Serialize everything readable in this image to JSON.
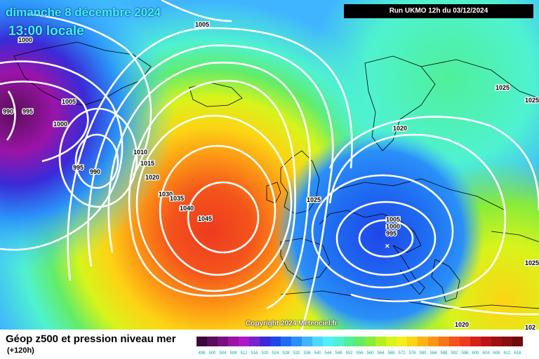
{
  "header": {
    "date": "dimanche 8 décembre 2024",
    "time": "13:00 locale",
    "run": "Run UKMO 12h du 03/12/2024"
  },
  "copyright": "Copyright 2024 Meteociel.fr",
  "legend": {
    "title": "Géop z500 et pression niveau mer",
    "subtitle": "(+120h)",
    "scale": [
      "496",
      "500",
      "504",
      "508",
      "512",
      "516",
      "520",
      "524",
      "528",
      "532",
      "536",
      "540",
      "544",
      "548",
      "552",
      "556",
      "560",
      "564",
      "568",
      "572",
      "576",
      "580",
      "584",
      "588",
      "592",
      "596",
      "600",
      "604",
      "608",
      "612",
      "616"
    ],
    "colors": [
      "#3a0a3a",
      "#5a0f5a",
      "#7a1080",
      "#9a14a8",
      "#b018c8",
      "#7a22cc",
      "#3a2ad8",
      "#1f46e8",
      "#1f6cf2",
      "#2a90f8",
      "#3fb4ff",
      "#4fd8ff",
      "#52f0ff",
      "#4ff2d0",
      "#4ff09a",
      "#62ec6a",
      "#88ec3a",
      "#b4f020",
      "#d8f41a",
      "#f4ee1a",
      "#fcd414",
      "#fcb414",
      "#fc9414",
      "#f87418",
      "#f4541c",
      "#ee3a1e",
      "#d82018",
      "#bc1414",
      "#a01010",
      "#881010",
      "#700c0c"
    ]
  },
  "isobars": [
    {
      "label": "1005"
    },
    {
      "label": "1000"
    },
    {
      "label": "990"
    },
    {
      "label": "995"
    },
    {
      "label": "1005"
    },
    {
      "label": "1000"
    },
    {
      "label": "995"
    },
    {
      "label": "990"
    },
    {
      "label": "1010"
    },
    {
      "label": "1015"
    },
    {
      "label": "1020"
    },
    {
      "label": "1030"
    },
    {
      "label": "1035"
    },
    {
      "label": "1040"
    },
    {
      "label": "1045"
    },
    {
      "label": "1025"
    },
    {
      "label": "1020"
    },
    {
      "label": "1025"
    },
    {
      "label": "1025"
    },
    {
      "label": "1005"
    },
    {
      "label": "1000"
    },
    {
      "label": "995"
    },
    {
      "label": "1020"
    },
    {
      "label": "1025"
    },
    {
      "label": "102"
    }
  ]
}
